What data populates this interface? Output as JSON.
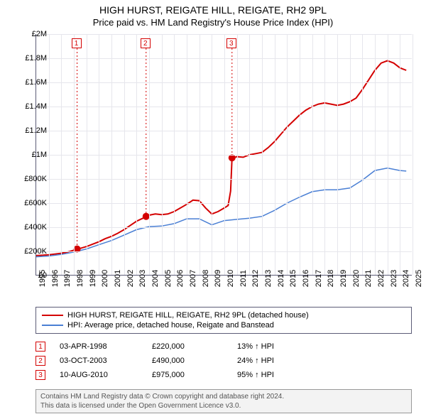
{
  "title": {
    "line1": "HIGH HURST, REIGATE HILL, REIGATE, RH2 9PL",
    "line2": "Price paid vs. HM Land Registry's House Price Index (HPI)"
  },
  "chart": {
    "type": "line",
    "background_color": "#ffffff",
    "grid_color": "#e6e6ec",
    "axis_color": "#5c5c77",
    "x": {
      "min": 1995,
      "max": 2025,
      "ticks": [
        1995,
        1996,
        1997,
        1998,
        1999,
        2000,
        2001,
        2002,
        2003,
        2004,
        2005,
        2006,
        2007,
        2008,
        2009,
        2010,
        2011,
        2012,
        2013,
        2014,
        2015,
        2016,
        2017,
        2018,
        2019,
        2020,
        2021,
        2022,
        2023,
        2024,
        2025
      ]
    },
    "y": {
      "min": 0,
      "max": 2000000,
      "ticks": [
        0,
        200000,
        400000,
        600000,
        800000,
        1000000,
        1200000,
        1400000,
        1600000,
        1800000,
        2000000
      ],
      "tick_labels": [
        "£0",
        "£200K",
        "£400K",
        "£600K",
        "£800K",
        "£1M",
        "£1.2M",
        "£1.4M",
        "£1.6M",
        "£1.8M",
        "£2M"
      ]
    },
    "series": [
      {
        "name": "HIGH HURST, REIGATE HILL, REIGATE, RH2 9PL (detached house)",
        "color": "#d40000",
        "line_width": 2,
        "data": [
          [
            1995.0,
            165000
          ],
          [
            1995.5,
            168000
          ],
          [
            1996.0,
            172000
          ],
          [
            1996.5,
            178000
          ],
          [
            1997.0,
            185000
          ],
          [
            1997.5,
            195000
          ],
          [
            1998.0,
            210000
          ],
          [
            1998.26,
            220000
          ],
          [
            1998.5,
            225000
          ],
          [
            1999.0,
            240000
          ],
          [
            1999.5,
            260000
          ],
          [
            2000.0,
            280000
          ],
          [
            2000.5,
            305000
          ],
          [
            2001.0,
            325000
          ],
          [
            2001.5,
            350000
          ],
          [
            2002.0,
            380000
          ],
          [
            2002.5,
            415000
          ],
          [
            2003.0,
            450000
          ],
          [
            2003.5,
            475000
          ],
          [
            2003.76,
            490000
          ],
          [
            2004.0,
            500000
          ],
          [
            2004.5,
            510000
          ],
          [
            2005.0,
            505000
          ],
          [
            2005.5,
            510000
          ],
          [
            2006.0,
            530000
          ],
          [
            2006.5,
            560000
          ],
          [
            2007.0,
            590000
          ],
          [
            2007.5,
            625000
          ],
          [
            2008.0,
            620000
          ],
          [
            2008.5,
            560000
          ],
          [
            2009.0,
            510000
          ],
          [
            2009.5,
            530000
          ],
          [
            2010.0,
            560000
          ],
          [
            2010.3,
            580000
          ],
          [
            2010.5,
            700000
          ],
          [
            2010.61,
            975000
          ],
          [
            2011.0,
            985000
          ],
          [
            2011.5,
            980000
          ],
          [
            2012.0,
            1000000
          ],
          [
            2012.5,
            1010000
          ],
          [
            2013.0,
            1020000
          ],
          [
            2013.5,
            1060000
          ],
          [
            2014.0,
            1110000
          ],
          [
            2014.5,
            1170000
          ],
          [
            2015.0,
            1230000
          ],
          [
            2015.5,
            1280000
          ],
          [
            2016.0,
            1330000
          ],
          [
            2016.5,
            1370000
          ],
          [
            2017.0,
            1400000
          ],
          [
            2017.5,
            1420000
          ],
          [
            2018.0,
            1430000
          ],
          [
            2018.5,
            1420000
          ],
          [
            2019.0,
            1410000
          ],
          [
            2019.5,
            1420000
          ],
          [
            2020.0,
            1440000
          ],
          [
            2020.5,
            1470000
          ],
          [
            2021.0,
            1540000
          ],
          [
            2021.5,
            1620000
          ],
          [
            2022.0,
            1700000
          ],
          [
            2022.5,
            1760000
          ],
          [
            2023.0,
            1780000
          ],
          [
            2023.5,
            1760000
          ],
          [
            2024.0,
            1720000
          ],
          [
            2024.5,
            1700000
          ]
        ]
      },
      {
        "name": "HPI: Average price, detached house, Reigate and Banstead",
        "color": "#4a7fd4",
        "line_width": 1.5,
        "data": [
          [
            1995.0,
            155000
          ],
          [
            1996.0,
            162000
          ],
          [
            1997.0,
            175000
          ],
          [
            1998.0,
            195000
          ],
          [
            1999.0,
            220000
          ],
          [
            2000.0,
            255000
          ],
          [
            2001.0,
            290000
          ],
          [
            2002.0,
            335000
          ],
          [
            2003.0,
            380000
          ],
          [
            2004.0,
            405000
          ],
          [
            2005.0,
            410000
          ],
          [
            2006.0,
            430000
          ],
          [
            2007.0,
            470000
          ],
          [
            2008.0,
            470000
          ],
          [
            2009.0,
            420000
          ],
          [
            2010.0,
            455000
          ],
          [
            2011.0,
            465000
          ],
          [
            2012.0,
            475000
          ],
          [
            2013.0,
            490000
          ],
          [
            2014.0,
            540000
          ],
          [
            2015.0,
            600000
          ],
          [
            2016.0,
            650000
          ],
          [
            2017.0,
            695000
          ],
          [
            2018.0,
            710000
          ],
          [
            2019.0,
            710000
          ],
          [
            2020.0,
            725000
          ],
          [
            2021.0,
            790000
          ],
          [
            2022.0,
            870000
          ],
          [
            2023.0,
            890000
          ],
          [
            2024.0,
            870000
          ],
          [
            2024.5,
            865000
          ]
        ]
      }
    ],
    "sale_markers": [
      {
        "n": "1",
        "x": 1998.26,
        "y": 220000
      },
      {
        "n": "2",
        "x": 2003.76,
        "y": 490000
      },
      {
        "n": "3",
        "x": 2010.61,
        "y": 975000
      }
    ],
    "marker_color": "#d40000",
    "marker_size": 5
  },
  "legend": {
    "items": [
      {
        "color": "#d40000",
        "label": "HIGH HURST, REIGATE HILL, REIGATE, RH2 9PL (detached house)"
      },
      {
        "color": "#4a7fd4",
        "label": "HPI: Average price, detached house, Reigate and Banstead"
      }
    ]
  },
  "events": [
    {
      "n": "1",
      "date": "03-APR-1998",
      "price": "£220,000",
      "pct": "13% ↑ HPI"
    },
    {
      "n": "2",
      "date": "03-OCT-2003",
      "price": "£490,000",
      "pct": "24% ↑ HPI"
    },
    {
      "n": "3",
      "date": "10-AUG-2010",
      "price": "£975,000",
      "pct": "95% ↑ HPI"
    }
  ],
  "footer": {
    "line1": "Contains HM Land Registry data © Crown copyright and database right 2024.",
    "line2": "This data is licensed under the Open Government Licence v3.0."
  }
}
